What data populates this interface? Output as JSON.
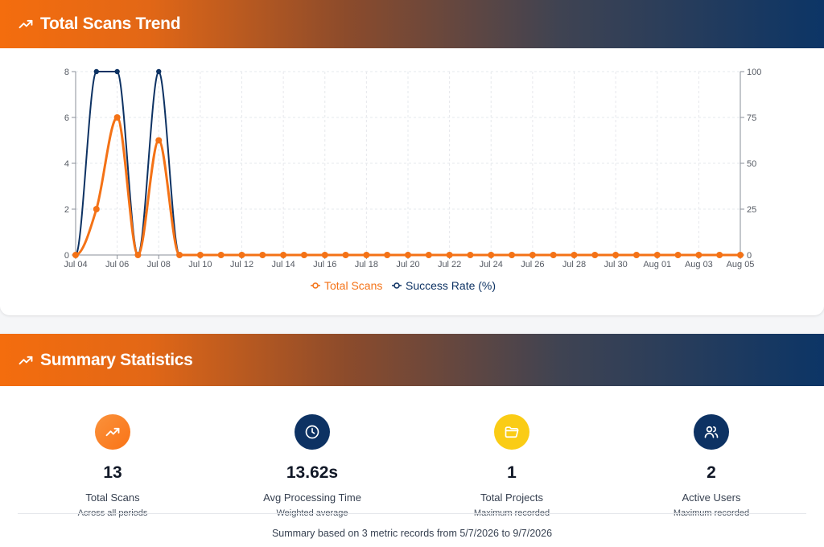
{
  "trend": {
    "title": "Total Scans Trend",
    "title_icon": "trending-up-icon"
  },
  "chart_data": {
    "type": "line",
    "x": [
      "Jul 04",
      "Jul 05",
      "Jul 06",
      "Jul 07",
      "Jul 08",
      "Jul 09",
      "Jul 10",
      "Jul 11",
      "Jul 12",
      "Jul 13",
      "Jul 14",
      "Jul 15",
      "Jul 16",
      "Jul 17",
      "Jul 18",
      "Jul 19",
      "Jul 20",
      "Jul 21",
      "Jul 22",
      "Jul 23",
      "Jul 24",
      "Jul 25",
      "Jul 26",
      "Jul 27",
      "Jul 28",
      "Jul 29",
      "Jul 30",
      "Jul 31",
      "Aug 01",
      "Aug 02",
      "Aug 03",
      "Aug 04",
      "Aug 05"
    ],
    "x_tick_labels": [
      "Jul 04",
      "Jul 06",
      "Jul 08",
      "Jul 10",
      "Jul 12",
      "Jul 14",
      "Jul 16",
      "Jul 18",
      "Jul 20",
      "Jul 22",
      "Jul 24",
      "Jul 26",
      "Jul 28",
      "Jul 30",
      "Aug 01",
      "Aug 03",
      "Aug 05"
    ],
    "series": [
      {
        "name": "Total Scans",
        "axis": "left",
        "color": "#f47216",
        "values": [
          0,
          2,
          6,
          0,
          5,
          0,
          0,
          0,
          0,
          0,
          0,
          0,
          0,
          0,
          0,
          0,
          0,
          0,
          0,
          0,
          0,
          0,
          0,
          0,
          0,
          0,
          0,
          0,
          0,
          0,
          0,
          0,
          0
        ]
      },
      {
        "name": "Success Rate (%)",
        "axis": "right",
        "color": "#0d3263",
        "values": [
          0,
          100,
          100,
          0,
          100,
          0,
          0,
          0,
          0,
          0,
          0,
          0,
          0,
          0,
          0,
          0,
          0,
          0,
          0,
          0,
          0,
          0,
          0,
          0,
          0,
          0,
          0,
          0,
          0,
          0,
          0,
          0,
          0
        ]
      }
    ],
    "y_left": {
      "ticks": [
        0,
        2,
        4,
        6,
        8
      ],
      "range": [
        0,
        8
      ]
    },
    "y_right": {
      "ticks": [
        0,
        25,
        50,
        75,
        100
      ],
      "range": [
        0,
        100
      ]
    },
    "grid": true,
    "legend_position": "bottom-center"
  },
  "summary": {
    "title": "Summary Statistics",
    "title_icon": "trending-up-icon",
    "stats": [
      {
        "icon": "trending-up-icon",
        "color": "#f97316",
        "value": "13",
        "label": "Total Scans",
        "sub": "Across all periods"
      },
      {
        "icon": "clock-icon",
        "color": "#0d3263",
        "value": "13.62s",
        "label": "Avg Processing Time",
        "sub": "Weighted average"
      },
      {
        "icon": "folder-icon",
        "color": "#facc15",
        "value": "1",
        "label": "Total Projects",
        "sub": "Maximum recorded"
      },
      {
        "icon": "users-icon",
        "color": "#0d3263",
        "value": "2",
        "label": "Active Users",
        "sub": "Maximum recorded"
      }
    ],
    "footer": "Summary based on 3 metric records from 5/7/2026 to 9/7/2026"
  }
}
